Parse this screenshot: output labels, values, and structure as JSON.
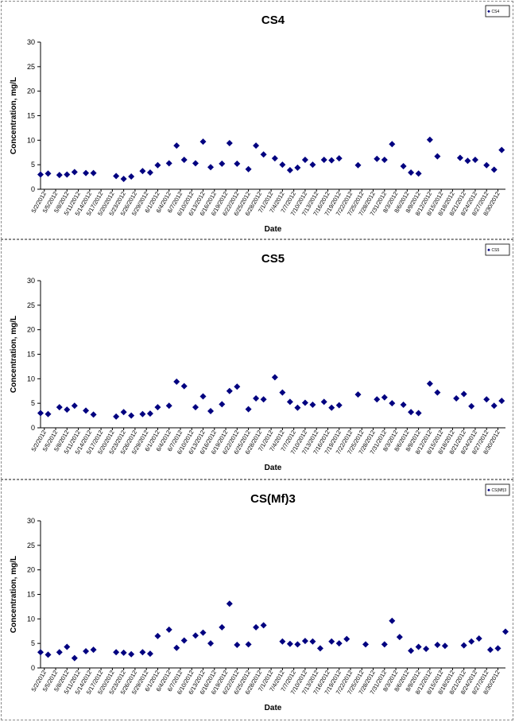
{
  "chart_data": [
    {
      "type": "scatter",
      "title": "CS4",
      "xlabel": "Date",
      "ylabel": "Concentration, mg/L",
      "ylim": [
        0,
        30
      ],
      "yticks": [
        "0",
        "5",
        "10",
        "15",
        "20",
        "25",
        "30"
      ],
      "xlim": [
        "2012-05-01",
        "2012-09-01"
      ],
      "tick_labels": [
        "5/2/2012",
        "5/5/2012",
        "5/8/2012",
        "5/11/2012",
        "5/14/2012",
        "5/17/2012",
        "5/20/2012",
        "5/23/2012",
        "5/26/2012",
        "5/29/2012",
        "6/1/2012",
        "6/4/2012",
        "6/7/2012",
        "6/10/2012",
        "6/13/2012",
        "6/16/2012",
        "6/19/2012",
        "6/22/2012",
        "6/25/2012",
        "6/28/2012",
        "7/1/2012",
        "7/4/2012",
        "7/7/2012",
        "7/10/2012",
        "7/13/2012",
        "7/16/2012",
        "7/19/2012",
        "7/22/2012",
        "7/25/2012",
        "7/28/2012",
        "7/31/2012",
        "8/3/2012",
        "8/6/2012",
        "8/9/2012",
        "8/12/2012",
        "8/15/2012",
        "8/18/2012",
        "8/21/2012",
        "8/24/2012",
        "8/27/2012",
        "8/30/2012"
      ],
      "legend_position": "top-right",
      "series": [
        {
          "name": "CS4",
          "color": "#000080",
          "x": [
            "2012-05-01",
            "2012-05-03",
            "2012-05-06",
            "2012-05-08",
            "2012-05-10",
            "2012-05-13",
            "2012-05-15",
            "2012-05-21",
            "2012-05-23",
            "2012-05-25",
            "2012-05-28",
            "2012-05-30",
            "2012-06-01",
            "2012-06-04",
            "2012-06-06",
            "2012-06-08",
            "2012-06-11",
            "2012-06-13",
            "2012-06-15",
            "2012-06-18",
            "2012-06-20",
            "2012-06-22",
            "2012-06-25",
            "2012-06-27",
            "2012-06-29",
            "2012-07-02",
            "2012-07-04",
            "2012-07-06",
            "2012-07-08",
            "2012-07-10",
            "2012-07-12",
            "2012-07-15",
            "2012-07-17",
            "2012-07-19",
            "2012-07-24",
            "2012-07-29",
            "2012-07-31",
            "2012-08-02",
            "2012-08-05",
            "2012-08-07",
            "2012-08-09",
            "2012-08-12",
            "2012-08-14",
            "2012-08-20",
            "2012-08-22",
            "2012-08-24",
            "2012-08-27",
            "2012-08-29",
            "2012-08-31"
          ],
          "y": [
            3.0,
            3.2,
            2.9,
            3.0,
            3.5,
            3.3,
            3.3,
            2.7,
            2.1,
            2.6,
            3.7,
            3.4,
            4.9,
            5.3,
            8.9,
            6.0,
            5.3,
            9.7,
            4.5,
            5.2,
            9.4,
            5.2,
            4.1,
            8.9,
            7.1,
            6.3,
            5.0,
            3.9,
            4.4,
            6.0,
            5.0,
            6.0,
            5.9,
            6.3,
            4.9,
            6.2,
            6.0,
            9.2,
            4.7,
            3.4,
            3.2,
            10.1,
            6.7,
            6.4,
            5.8,
            6.0,
            4.9,
            4.0,
            8.0
          ]
        }
      ]
    },
    {
      "type": "scatter",
      "title": "CS5",
      "xlabel": "Date",
      "ylabel": "Concentration, mg/L",
      "ylim": [
        0,
        30
      ],
      "yticks": [
        "0",
        "5",
        "10",
        "15",
        "20",
        "25",
        "30"
      ],
      "xlim": [
        "2012-05-01",
        "2012-09-01"
      ],
      "tick_labels": [
        "5/2/2012",
        "5/5/2012",
        "5/8/2012",
        "5/11/2012",
        "5/14/2012",
        "5/17/2012",
        "5/20/2012",
        "5/23/2012",
        "5/26/2012",
        "5/29/2012",
        "6/1/2012",
        "6/4/2012",
        "6/7/2012",
        "6/10/2012",
        "6/13/2012",
        "6/16/2012",
        "6/19/2012",
        "6/22/2012",
        "6/25/2012",
        "6/28/2012",
        "7/1/2012",
        "7/4/2012",
        "7/7/2012",
        "7/10/2012",
        "7/13/2012",
        "7/16/2012",
        "7/19/2012",
        "7/22/2012",
        "7/25/2012",
        "7/28/2012",
        "7/31/2012",
        "8/3/2012",
        "8/6/2012",
        "8/9/2012",
        "8/12/2012",
        "8/15/2012",
        "8/18/2012",
        "8/21/2012",
        "8/24/2012",
        "8/27/2012",
        "8/30/2012"
      ],
      "legend_position": "top-right",
      "series": [
        {
          "name": "CS5",
          "color": "#000080",
          "x": [
            "2012-05-01",
            "2012-05-03",
            "2012-05-06",
            "2012-05-08",
            "2012-05-10",
            "2012-05-13",
            "2012-05-15",
            "2012-05-21",
            "2012-05-23",
            "2012-05-25",
            "2012-05-28",
            "2012-05-30",
            "2012-06-01",
            "2012-06-04",
            "2012-06-06",
            "2012-06-08",
            "2012-06-11",
            "2012-06-13",
            "2012-06-15",
            "2012-06-18",
            "2012-06-20",
            "2012-06-22",
            "2012-06-25",
            "2012-06-27",
            "2012-06-29",
            "2012-07-02",
            "2012-07-04",
            "2012-07-06",
            "2012-07-08",
            "2012-07-10",
            "2012-07-12",
            "2012-07-15",
            "2012-07-17",
            "2012-07-19",
            "2012-07-24",
            "2012-07-29",
            "2012-07-31",
            "2012-08-02",
            "2012-08-05",
            "2012-08-07",
            "2012-08-09",
            "2012-08-12",
            "2012-08-14",
            "2012-08-19",
            "2012-08-21",
            "2012-08-23",
            "2012-08-27",
            "2012-08-29",
            "2012-08-31"
          ],
          "y": [
            3.0,
            2.8,
            4.2,
            3.7,
            4.5,
            3.5,
            2.7,
            2.3,
            3.2,
            2.5,
            2.8,
            2.9,
            4.2,
            4.5,
            9.4,
            8.5,
            4.2,
            6.4,
            3.4,
            4.8,
            7.5,
            8.4,
            3.8,
            6.0,
            5.8,
            10.3,
            7.2,
            5.3,
            4.1,
            5.1,
            4.7,
            5.3,
            4.1,
            4.6,
            6.8,
            5.8,
            6.2,
            5.0,
            4.7,
            3.2,
            3.0,
            9.0,
            7.2,
            6.0,
            6.9,
            4.4,
            5.8,
            4.5,
            5.5
          ]
        }
      ]
    },
    {
      "type": "scatter",
      "title": "CS(Mf)3",
      "xlabel": "Date",
      "ylabel": "Concentration, mg/L",
      "ylim": [
        0,
        30
      ],
      "yticks": [
        "0",
        "5",
        "10",
        "15",
        "20",
        "25",
        "30"
      ],
      "xlim": [
        "2012-05-01",
        "2012-09-01"
      ],
      "tick_labels": [
        "5/2/2012",
        "5/5/2012",
        "5/8/2012",
        "5/11/2012",
        "5/14/2012",
        "5/17/2012",
        "5/20/2012",
        "5/23/2012",
        "5/26/2012",
        "5/29/2012",
        "6/1/2012",
        "6/4/2012",
        "6/7/2012",
        "6/10/2012",
        "6/13/2012",
        "6/16/2012",
        "6/19/2012",
        "6/22/2012",
        "6/25/2012",
        "6/28/2012",
        "7/1/2012",
        "7/4/2012",
        "7/7/2012",
        "7/10/2012",
        "7/13/2012",
        "7/16/2012",
        "7/19/2012",
        "7/22/2012",
        "7/25/2012",
        "7/28/2012",
        "7/31/2012",
        "8/3/2012",
        "8/6/2012",
        "8/9/2012",
        "8/12/2012",
        "8/15/2012",
        "8/18/2012",
        "8/21/2012",
        "8/24/2012",
        "8/27/2012",
        "8/30/2012"
      ],
      "legend_position": "top-right",
      "series": [
        {
          "name": "CS(Mf)3",
          "color": "#000080",
          "x": [
            "2012-05-01",
            "2012-05-03",
            "2012-05-06",
            "2012-05-08",
            "2012-05-10",
            "2012-05-13",
            "2012-05-15",
            "2012-05-21",
            "2012-05-23",
            "2012-05-25",
            "2012-05-28",
            "2012-05-30",
            "2012-06-01",
            "2012-06-04",
            "2012-06-06",
            "2012-06-08",
            "2012-06-11",
            "2012-06-13",
            "2012-06-15",
            "2012-06-18",
            "2012-06-20",
            "2012-06-22",
            "2012-06-25",
            "2012-06-27",
            "2012-06-29",
            "2012-07-04",
            "2012-07-06",
            "2012-07-08",
            "2012-07-10",
            "2012-07-12",
            "2012-07-14",
            "2012-07-17",
            "2012-07-19",
            "2012-07-21",
            "2012-07-26",
            "2012-07-31",
            "2012-08-02",
            "2012-08-04",
            "2012-08-07",
            "2012-08-09",
            "2012-08-11",
            "2012-08-14",
            "2012-08-16",
            "2012-08-21",
            "2012-08-23",
            "2012-08-25",
            "2012-08-28",
            "2012-08-30",
            "2012-09-01"
          ],
          "y": [
            3.2,
            2.7,
            3.2,
            4.3,
            2.0,
            3.4,
            3.7,
            3.2,
            3.1,
            2.8,
            3.2,
            2.9,
            6.5,
            7.8,
            4.1,
            5.6,
            6.6,
            7.2,
            5.0,
            8.3,
            13.1,
            4.7,
            4.8,
            8.3,
            8.7,
            5.4,
            4.9,
            4.8,
            5.5,
            5.4,
            4.0,
            5.4,
            5.0,
            5.9,
            4.8,
            4.8,
            9.6,
            6.3,
            3.5,
            4.3,
            3.9,
            4.7,
            4.5,
            4.6,
            5.4,
            6.0,
            3.7,
            4.0,
            7.4
          ]
        }
      ]
    }
  ]
}
